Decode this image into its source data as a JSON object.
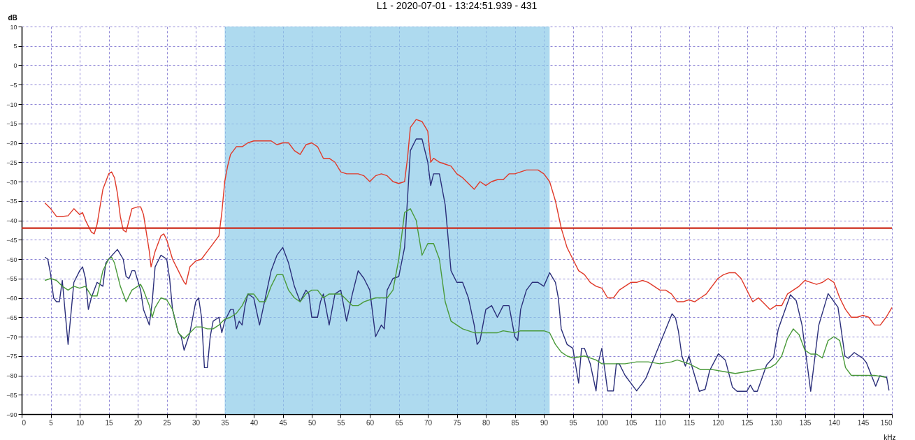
{
  "chart_data": {
    "type": "line",
    "title": "L1 - 2020-07-01  - 13:24:51.939 - 431",
    "xlabel": "kHz",
    "ylabel": "dB",
    "xlim": [
      0,
      150
    ],
    "ylim": [
      -90,
      10
    ],
    "xticks": [
      0,
      5,
      10,
      15,
      20,
      25,
      30,
      35,
      40,
      45,
      50,
      55,
      60,
      65,
      70,
      75,
      80,
      85,
      90,
      95,
      100,
      105,
      110,
      115,
      120,
      125,
      130,
      135,
      140,
      145,
      150
    ],
    "yticks": [
      -90,
      -85,
      -80,
      -75,
      -70,
      -65,
      -60,
      -55,
      -50,
      -45,
      -40,
      -35,
      -30,
      -25,
      -20,
      -15,
      -10,
      -5,
      0,
      5,
      10
    ],
    "grid": true,
    "line_style": "solid",
    "marker": "none",
    "ref_lines": [
      {
        "axis": "y",
        "value": -42,
        "color": "#cc2a1a"
      }
    ],
    "bands": [
      {
        "axis": "x",
        "from": 35,
        "to": 91,
        "color": "#8ccbe8"
      }
    ],
    "series": [
      {
        "color": "#e03a2a",
        "x": [
          4,
          5,
          6,
          7,
          8,
          9,
          10,
          10.5,
          11,
          12,
          12.5,
          13,
          14,
          15,
          15.5,
          16,
          16.5,
          17,
          17.5,
          18,
          19,
          20,
          20.5,
          21,
          22,
          22.3,
          23,
          24,
          24.5,
          25,
          26,
          27,
          28,
          28.3,
          29,
          30,
          31,
          32,
          33,
          34,
          34.5,
          35,
          35.5,
          36,
          37,
          38,
          39,
          40,
          41,
          42,
          43,
          44,
          45,
          46,
          47,
          48,
          49,
          50,
          51,
          52,
          53,
          54,
          55,
          56,
          57,
          58,
          59,
          60,
          61,
          62,
          63,
          64,
          65,
          66,
          66.5,
          67,
          68,
          69,
          70,
          70.5,
          71,
          72,
          73,
          74,
          75,
          76,
          77,
          78,
          79,
          80,
          81,
          82,
          83,
          84,
          85,
          86,
          87,
          88,
          89,
          90,
          91,
          92,
          93,
          94,
          95,
          96,
          97,
          98,
          99,
          100,
          101,
          102,
          103,
          104,
          105,
          106,
          107,
          108,
          109,
          110,
          111,
          112,
          113,
          114,
          115,
          116,
          117,
          118,
          119,
          120,
          121,
          122,
          123,
          124,
          125,
          126,
          127,
          128,
          129,
          130,
          131,
          132,
          133,
          134,
          135,
          136,
          137,
          138,
          139,
          140,
          141,
          142,
          143,
          144,
          145,
          146,
          147,
          148,
          149,
          150
        ],
        "values": [
          -35.5,
          -37,
          -39,
          -39,
          -38.8,
          -37,
          -38.5,
          -38,
          -40,
          -43,
          -43.5,
          -41,
          -32,
          -28,
          -27.5,
          -29,
          -33,
          -39,
          -42.5,
          -43,
          -37,
          -36.5,
          -36.5,
          -38.5,
          -48,
          -52,
          -48,
          -44,
          -43.5,
          -45,
          -50,
          -53,
          -56,
          -56.5,
          -52,
          -50.5,
          -50,
          -48,
          -46,
          -44,
          -38,
          -30,
          -26,
          -23,
          -21,
          -21,
          -20,
          -19.5,
          -19.5,
          -19.5,
          -19.5,
          -20.5,
          -20,
          -20,
          -22,
          -23,
          -20.5,
          -20,
          -21,
          -24,
          -24,
          -25,
          -27.5,
          -28,
          -28,
          -28,
          -28.5,
          -30,
          -28.5,
          -28,
          -28.5,
          -30,
          -30.5,
          -30,
          -24,
          -16,
          -14,
          -14.5,
          -17,
          -25,
          -24,
          -25,
          -25.5,
          -26,
          -28,
          -29,
          -30.5,
          -32,
          -30,
          -31,
          -30,
          -29.5,
          -29.5,
          -28,
          -28,
          -27.5,
          -27,
          -27,
          -27,
          -28,
          -30,
          -35,
          -42,
          -47,
          -50,
          -53,
          -54,
          -56,
          -57,
          -57.5,
          -60,
          -60,
          -58,
          -57,
          -56,
          -56,
          -55.5,
          -56,
          -57,
          -58,
          -58,
          -59,
          -61,
          -61,
          -60.5,
          -61,
          -60,
          -59,
          -57,
          -55,
          -54,
          -53.5,
          -53.5,
          -55,
          -58,
          -61,
          -60,
          -61.5,
          -63,
          -62,
          -62,
          -59,
          -58,
          -57,
          -55.5,
          -56,
          -56.5,
          -56,
          -55,
          -56,
          -60,
          -63,
          -65,
          -65,
          -64.5,
          -65,
          -67,
          -67,
          -65,
          -62.5
        ]
      },
      {
        "color": "#2b2f7a",
        "x": [
          4,
          4.5,
          5,
          5.5,
          6,
          6.5,
          7,
          8,
          9,
          10,
          10.5,
          11,
          11.5,
          12,
          13,
          14,
          14.5,
          15,
          16.5,
          17.5,
          18,
          18.5,
          19,
          19.5,
          20.5,
          21,
          22,
          22.5,
          23,
          24,
          25,
          25.5,
          26,
          27,
          27.5,
          28,
          29,
          30,
          30.5,
          31,
          31.5,
          32,
          32.5,
          33,
          34,
          34.5,
          35,
          36,
          36.5,
          37,
          37.5,
          38,
          38.5,
          39,
          40,
          41,
          42,
          43,
          44,
          45,
          46,
          47,
          48,
          49,
          49.5,
          50,
          51,
          51.5,
          52,
          53,
          54,
          55,
          56,
          57,
          58,
          59,
          60,
          61,
          62,
          62.5,
          63,
          64,
          65,
          66,
          67,
          68,
          69,
          70,
          70.5,
          71,
          72,
          73,
          74,
          75,
          76,
          77,
          78,
          78.5,
          79,
          80,
          81,
          82,
          83,
          84,
          85,
          85.5,
          86,
          87,
          88,
          89,
          90,
          91,
          92,
          92.5,
          93,
          94,
          95,
          96,
          96.5,
          97,
          98,
          99,
          99.5,
          100,
          101,
          102,
          102.5,
          103,
          104,
          105,
          106,
          107,
          107.6,
          112.1,
          112.7,
          113.2,
          113.8,
          114.4,
          115,
          116.8,
          117.8,
          118.6,
          120.1,
          121.3,
          122.5,
          123.3,
          125,
          125.6,
          126.2,
          126.8,
          128.4,
          129.6,
          130.4,
          132.5,
          133.5,
          134.5,
          136,
          137.4,
          139,
          140.7,
          141.9,
          142.5,
          143.5,
          145,
          145.6,
          147.2,
          147.9,
          149.1,
          149.5
        ],
        "values": [
          -49.5,
          -50,
          -54,
          -60,
          -61,
          -61,
          -55.5,
          -72,
          -56,
          -53,
          -52,
          -55,
          -63,
          -60,
          -56,
          -57,
          -51,
          -50,
          -47.5,
          -50,
          -54.5,
          -55,
          -53,
          -53,
          -58,
          -63,
          -67,
          -61,
          -52,
          -49,
          -50,
          -55,
          -63,
          -69,
          -70,
          -73.5,
          -69,
          -61,
          -60,
          -65,
          -78,
          -78,
          -70,
          -66,
          -65,
          -69,
          -66,
          -63,
          -63,
          -68,
          -66,
          -67,
          -62,
          -59,
          -60,
          -67,
          -60,
          -53,
          -49,
          -47,
          -51,
          -57,
          -61,
          -58,
          -59,
          -65,
          -65,
          -61,
          -59,
          -67,
          -59,
          -58,
          -66,
          -59,
          -53,
          -55,
          -58,
          -70,
          -67,
          -68,
          -58,
          -55,
          -54.5,
          -47,
          -22,
          -19,
          -19,
          -25,
          -31,
          -28,
          -28,
          -36,
          -53,
          -56,
          -56,
          -60,
          -67,
          -72,
          -71,
          -63,
          -62,
          -65,
          -62,
          -62,
          -70,
          -71,
          -63,
          -58,
          -56,
          -56,
          -57,
          -53.5,
          -56,
          -60,
          -68,
          -72,
          -73,
          -82,
          -73,
          -73,
          -77,
          -84,
          -76,
          -73,
          -84,
          -84,
          -77,
          -77,
          -80,
          -82,
          -84,
          -82,
          -80.7,
          -64.1,
          -65.2,
          -68.6,
          -75,
          -77.6,
          -75,
          -84.1,
          -83.6,
          -78.7,
          -74.4,
          -76.1,
          -83,
          -84.1,
          -84.1,
          -82.5,
          -84.1,
          -84.1,
          -77.3,
          -75.3,
          -68.1,
          -59.2,
          -60.7,
          -67,
          -84.1,
          -67,
          -58.9,
          -62.4,
          -75,
          -75.6,
          -74.1,
          -75.6,
          -76.7,
          -82.8,
          -80.1,
          -80.5,
          -83.9
        ]
      },
      {
        "color": "#4a9a3a",
        "x": [
          4,
          5,
          6,
          7,
          8,
          9,
          10,
          11,
          12,
          13,
          14,
          15,
          15.5,
          16,
          17,
          18,
          19,
          20,
          20.5,
          21,
          22,
          22.5,
          23,
          24,
          25,
          26,
          27,
          28,
          29,
          30,
          31,
          32,
          33,
          34,
          35,
          36,
          37,
          38,
          39,
          40,
          41,
          42,
          43,
          44,
          45,
          46,
          47,
          48,
          49,
          50,
          51,
          52,
          53,
          54,
          55,
          56,
          57,
          58,
          59,
          60,
          61,
          62,
          63,
          64,
          65,
          66,
          67,
          68,
          69,
          70,
          71,
          72,
          73,
          74,
          75,
          76,
          77,
          78,
          80,
          82,
          83,
          85,
          86,
          88,
          90,
          91,
          92,
          93,
          94,
          95,
          97,
          99,
          100,
          104,
          106,
          108,
          110,
          112,
          113,
          115,
          117,
          119,
          121,
          123,
          125,
          127,
          129,
          130,
          131,
          132,
          133,
          134,
          135,
          136,
          137,
          138,
          139,
          140,
          141,
          142,
          143,
          145,
          147,
          149
        ],
        "values": [
          -55.5,
          -55,
          -55.5,
          -57,
          -58,
          -57,
          -57.5,
          -57,
          -59.5,
          -59.5,
          -53,
          -50,
          -49.5,
          -51,
          -57,
          -61,
          -58,
          -57,
          -56.5,
          -58,
          -62,
          -65,
          -62.5,
          -60,
          -60.5,
          -63,
          -69,
          -70.5,
          -69,
          -67.5,
          -67.5,
          -68,
          -68,
          -67,
          -65.5,
          -65,
          -64,
          -62,
          -59,
          -59,
          -61,
          -61,
          -57,
          -54,
          -54,
          -58,
          -60,
          -61,
          -59,
          -58,
          -58,
          -60,
          -59,
          -59,
          -59,
          -60.5,
          -62,
          -62,
          -61,
          -60.5,
          -60,
          -60,
          -60,
          -58,
          -50,
          -38,
          -37,
          -40,
          -49,
          -46,
          -46,
          -50,
          -61,
          -66,
          -67,
          -68,
          -68.5,
          -69,
          -69,
          -69,
          -68.5,
          -69,
          -68.5,
          -68.5,
          -68.5,
          -69,
          -72,
          -74,
          -75,
          -75.5,
          -75,
          -76,
          -77,
          -77,
          -76.5,
          -76.5,
          -77,
          -76.5,
          -76,
          -77,
          -78.5,
          -78.5,
          -79,
          -79.5,
          -79,
          -78.5,
          -78,
          -77,
          -75,
          -70.5,
          -68,
          -69.5,
          -73.5,
          -74.5,
          -74.5,
          -75.5,
          -71,
          -70,
          -71,
          -78,
          -80,
          -80,
          -80,
          -80.5
        ]
      }
    ]
  }
}
